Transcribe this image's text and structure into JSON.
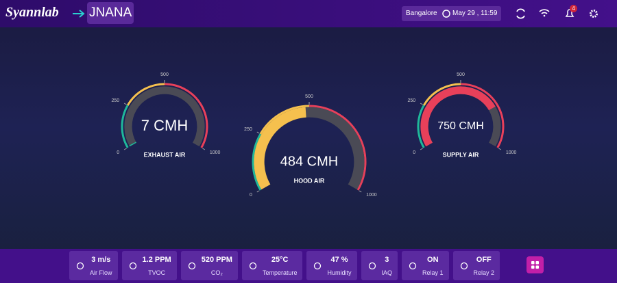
{
  "header": {
    "logo": "Syannlab",
    "brand": "JNANA",
    "location": "Bangalore",
    "datetime": "May 29 , 11:59",
    "notifications": "4"
  },
  "gauges": [
    {
      "title": "EXHAUST AIR",
      "value": 7,
      "value_label": "7 CMH",
      "min": 0,
      "max": 1000,
      "ticks": [
        0,
        250,
        500,
        1000
      ]
    },
    {
      "title": "HOOD AIR",
      "value": 484,
      "value_label": "484 CMH",
      "min": 0,
      "max": 1000,
      "ticks": [
        0,
        250,
        500,
        1000
      ]
    },
    {
      "title": "SUPPLY AIR",
      "value": 750,
      "value_label": "750 CMH",
      "min": 0,
      "max": 1000,
      "ticks": [
        0,
        250,
        500,
        1000
      ]
    }
  ],
  "bands": [
    {
      "from": 0,
      "to": 250,
      "color": "#1fb89a"
    },
    {
      "from": 250,
      "to": 500,
      "color": "#f5c04e"
    },
    {
      "from": 500,
      "to": 1000,
      "color": "#e8405a"
    }
  ],
  "footer": [
    {
      "value": "3 m/s",
      "label": "Air Flow"
    },
    {
      "value": "1.2 PPM",
      "label": "TVOC"
    },
    {
      "value": "520 PPM",
      "label": "CO₂"
    },
    {
      "value": "25°C",
      "label": "Temperature"
    },
    {
      "value": "47 %",
      "label": "Humidity"
    },
    {
      "value": "3",
      "label": "IAQ"
    },
    {
      "value": "ON",
      "label": "Relay 1"
    },
    {
      "value": "OFF",
      "label": "Relay 2"
    }
  ]
}
